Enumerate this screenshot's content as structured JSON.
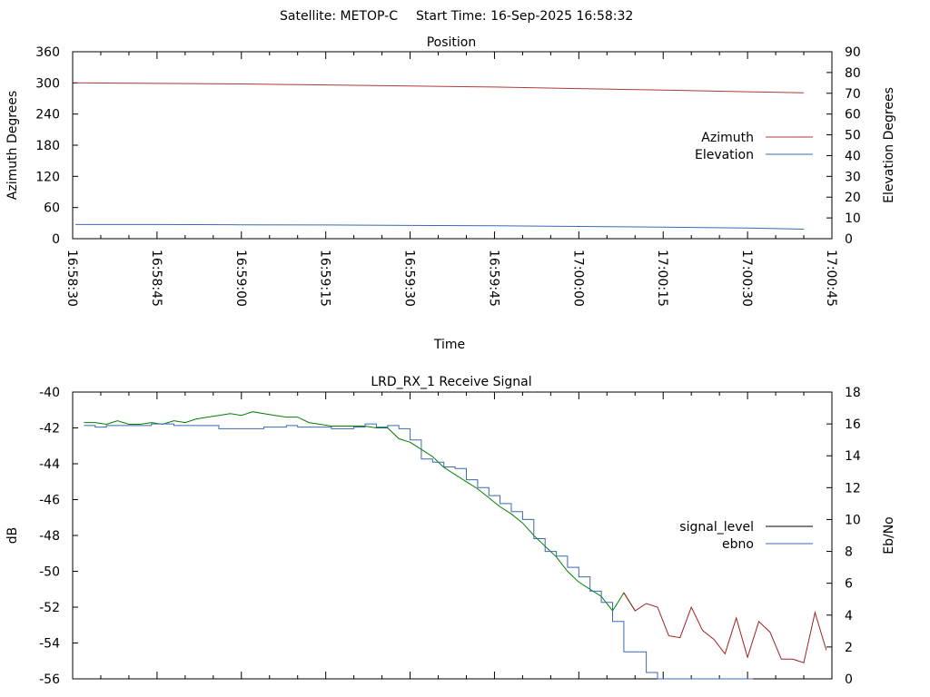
{
  "header": {
    "satellite_label": "Satellite: METOP-C",
    "start_time_label": "Start Time: 16-Sep-2025 16:58:32"
  },
  "chart_data": [
    {
      "type": "line",
      "title": "Position",
      "xlabel": "Time",
      "ylabel": "Azimuth Degrees",
      "y2label": "Elevation Degrees",
      "x_ticks": [
        "16:58:30",
        "16:58:45",
        "16:59:00",
        "16:59:15",
        "16:59:30",
        "16:59:45",
        "17:00:00",
        "17:00:15",
        "17:00:30",
        "17:00:45"
      ],
      "xlim_seconds": [
        0,
        135
      ],
      "ylim": [
        0,
        360
      ],
      "y_ticks": [
        0,
        60,
        120,
        180,
        240,
        300,
        360
      ],
      "y2lim": [
        0,
        90
      ],
      "y2_ticks": [
        0,
        10,
        20,
        30,
        40,
        50,
        60,
        70,
        80,
        90
      ],
      "legend_position": "right",
      "series": [
        {
          "name": "Azimuth",
          "axis": "y",
          "color": "#b03a3a",
          "x": [
            0.5,
            15,
            30,
            45,
            60,
            75,
            90,
            105,
            120,
            130
          ],
          "values": [
            300,
            299,
            298,
            296,
            294,
            292,
            289,
            286,
            283,
            281
          ]
        },
        {
          "name": "Elevation",
          "axis": "y2",
          "color": "#3a6bb0",
          "x": [
            0.5,
            15,
            30,
            45,
            60,
            75,
            90,
            105,
            120,
            130
          ],
          "values": [
            6.8,
            6.8,
            6.7,
            6.6,
            6.4,
            6.2,
            5.9,
            5.6,
            5.1,
            4.6
          ]
        }
      ]
    },
    {
      "type": "line",
      "title": "LRD_RX_1 Receive Signal",
      "ylabel": "dB",
      "y2label": "Eb/No",
      "ylim": [
        -56,
        -40
      ],
      "y_ticks": [
        -56,
        -54,
        -52,
        -50,
        -48,
        -46,
        -44,
        -42,
        -40
      ],
      "y2lim": [
        0,
        18
      ],
      "y2_ticks": [
        0,
        2,
        4,
        6,
        8,
        10,
        12,
        14,
        16,
        18
      ],
      "xlim_seconds": [
        0,
        135
      ],
      "legend_position": "right",
      "series": [
        {
          "name": "signal_level",
          "axis": "y",
          "color": "#008000",
          "late_color": "#a02020",
          "color_switch_x": 100,
          "x": [
            2,
            4,
            6,
            8,
            10,
            12,
            14,
            16,
            18,
            20,
            22,
            24,
            26,
            28,
            30,
            32,
            34,
            36,
            38,
            40,
            42,
            44,
            46,
            48,
            50,
            52,
            54,
            56,
            58,
            60,
            62,
            64,
            66,
            68,
            70,
            72,
            74,
            76,
            78,
            80,
            82,
            84,
            86,
            88,
            90,
            92,
            94,
            96,
            98,
            100,
            102,
            104,
            106,
            108,
            110,
            112,
            114,
            116,
            118,
            120,
            122,
            124,
            126,
            128,
            130,
            132,
            134
          ],
          "values": [
            -41.7,
            -41.7,
            -41.8,
            -41.6,
            -41.8,
            -41.8,
            -41.7,
            -41.8,
            -41.6,
            -41.7,
            -41.5,
            -41.4,
            -41.3,
            -41.2,
            -41.3,
            -41.1,
            -41.2,
            -41.3,
            -41.4,
            -41.4,
            -41.7,
            -41.8,
            -41.9,
            -41.9,
            -41.9,
            -41.9,
            -42.0,
            -42.0,
            -42.6,
            -42.8,
            -43.2,
            -43.6,
            -44.2,
            -44.6,
            -45.0,
            -45.4,
            -45.9,
            -46.4,
            -46.8,
            -47.3,
            -48.0,
            -48.6,
            -49.2,
            -50.0,
            -50.6,
            -51.0,
            -51.4,
            -52.2,
            -51.2,
            -52.2,
            -51.8,
            -52.0,
            -53.6,
            -53.7,
            -52.0,
            -53.3,
            -53.8,
            -54.6,
            -52.6,
            -54.8,
            -52.8,
            -53.4,
            -54.9,
            -54.9,
            -55.1,
            -52.3,
            -54.4
          ]
        },
        {
          "name": "ebno",
          "axis": "y2",
          "color": "#3a6bb0",
          "x": [
            2,
            4,
            6,
            8,
            10,
            12,
            14,
            16,
            18,
            20,
            22,
            24,
            26,
            28,
            30,
            32,
            34,
            36,
            38,
            40,
            42,
            44,
            46,
            48,
            50,
            52,
            54,
            56,
            58,
            60,
            62,
            64,
            66,
            68,
            70,
            72,
            74,
            76,
            78,
            80,
            82,
            84,
            86,
            88,
            90,
            92,
            94,
            96,
            98,
            100,
            102,
            104,
            106,
            108,
            110,
            112,
            114,
            116,
            118,
            119,
            120,
            121
          ],
          "values": [
            15.9,
            15.8,
            15.9,
            15.9,
            15.9,
            15.9,
            16.0,
            16.0,
            15.9,
            15.9,
            15.9,
            15.9,
            15.7,
            15.7,
            15.7,
            15.7,
            15.8,
            15.8,
            15.9,
            15.8,
            15.8,
            15.8,
            15.7,
            15.7,
            15.8,
            16.0,
            15.8,
            15.9,
            15.7,
            15.0,
            13.8,
            13.6,
            13.3,
            13.2,
            12.5,
            12.0,
            11.5,
            11.0,
            10.5,
            10.0,
            8.8,
            8.0,
            7.7,
            7.0,
            6.4,
            5.5,
            4.8,
            3.6,
            1.7,
            1.7,
            0.4,
            0,
            0,
            0,
            0,
            0,
            0,
            0,
            0,
            0,
            0,
            0
          ]
        }
      ]
    }
  ]
}
